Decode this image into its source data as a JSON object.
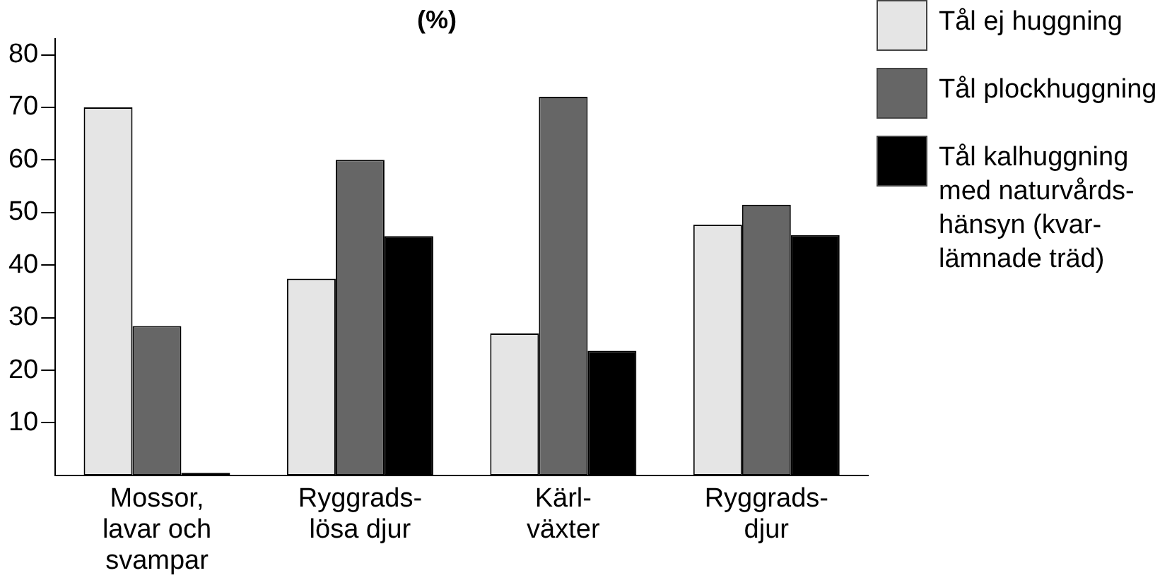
{
  "chart_data": {
    "type": "bar",
    "title": "(%)",
    "categories": [
      "Mossor, lavar och svampar",
      "Ryggrads-lösa djur",
      "Kärl-växter",
      "Ryggrads-djur"
    ],
    "series": [
      {
        "name": "Tål ej huggning",
        "color": "#e5e5e5",
        "values": [
          70,
          37.4,
          27,
          47.7
        ]
      },
      {
        "name": "Tål plockhuggning",
        "color": "#666666",
        "values": [
          28.4,
          60,
          72,
          51.5
        ]
      },
      {
        "name": "Tål kalhuggning med naturvårds-hänsyn (kvar-lämnade träd)",
        "color": "#000000",
        "values": [
          0.5,
          45.5,
          23.7,
          45.7
        ]
      }
    ],
    "ylim": [
      0,
      83
    ],
    "yticks": [
      10,
      20,
      30,
      40,
      50,
      60,
      70,
      80
    ],
    "grid": false,
    "legend": "right"
  }
}
